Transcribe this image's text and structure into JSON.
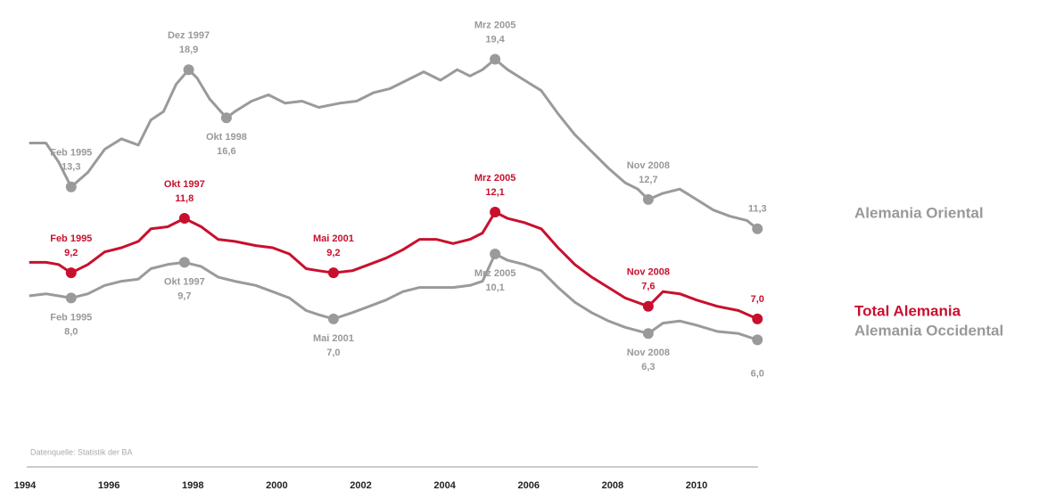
{
  "chart_data": {
    "type": "line",
    "source": "Datenquelle: Statistik der BA",
    "xlim": [
      1994,
      2011.7
    ],
    "xticks": [
      1994,
      1996,
      1998,
      2000,
      2002,
      2004,
      2006,
      2008,
      2010
    ],
    "ylim": [
      5,
      21
    ],
    "series": [
      {
        "name": "Alemania Oriental",
        "color": "#9a9a9a",
        "x": [
          1994.1,
          1994.5,
          1994.8,
          1995.1,
          1995.5,
          1995.9,
          1996.3,
          1996.7,
          1997.0,
          1997.3,
          1997.6,
          1997.9,
          1998.1,
          1998.4,
          1998.8,
          1999.0,
          1999.4,
          1999.8,
          2000.2,
          2000.6,
          2001.0,
          2001.5,
          2001.9,
          2002.3,
          2002.7,
          2003.1,
          2003.5,
          2003.9,
          2004.3,
          2004.6,
          2004.9,
          2005.2,
          2005.5,
          2005.9,
          2006.3,
          2006.7,
          2007.1,
          2007.5,
          2007.9,
          2008.3,
          2008.6,
          2008.85,
          2009.2,
          2009.6,
          2010.0,
          2010.4,
          2010.8,
          2011.2,
          2011.45
        ],
        "values": [
          15.4,
          15.4,
          14.5,
          13.3,
          14.0,
          15.1,
          15.6,
          15.3,
          16.5,
          16.9,
          18.2,
          18.9,
          18.5,
          17.5,
          16.6,
          16.9,
          17.4,
          17.7,
          17.3,
          17.4,
          17.1,
          17.3,
          17.4,
          17.8,
          18.0,
          18.4,
          18.8,
          18.4,
          18.9,
          18.6,
          18.9,
          19.4,
          18.9,
          18.4,
          17.9,
          16.8,
          15.8,
          15.0,
          14.2,
          13.5,
          13.2,
          12.7,
          13.0,
          13.2,
          12.7,
          12.2,
          11.9,
          11.7,
          11.3
        ],
        "annotations": [
          {
            "x": 1995.1,
            "label": "Feb 1995",
            "value": 13.3,
            "value_label": "13,3",
            "side": "above"
          },
          {
            "x": 1997.9,
            "label": "Dez 1997",
            "value": 18.9,
            "value_label": "18,9",
            "side": "above"
          },
          {
            "x": 1998.8,
            "label": "Okt 1998",
            "value": 16.6,
            "value_label": "16,6",
            "side": "below"
          },
          {
            "x": 2005.2,
            "label": "Mrz 2005",
            "value": 19.4,
            "value_label": "19,4",
            "side": "above"
          },
          {
            "x": 2008.85,
            "label": "Nov 2008",
            "value": 12.7,
            "value_label": "12,7",
            "side": "above"
          },
          {
            "x": 2011.45,
            "value": 11.3,
            "value_label": "11,3",
            "side": "above"
          }
        ]
      },
      {
        "name": "Total Alemania",
        "color": "#c8102e",
        "x": [
          1994.1,
          1994.5,
          1994.8,
          1995.1,
          1995.5,
          1995.9,
          1996.3,
          1996.7,
          1997.0,
          1997.4,
          1997.8,
          1998.2,
          1998.6,
          1999.0,
          1999.5,
          1999.9,
          2000.3,
          2000.7,
          2001.0,
          2001.35,
          2001.8,
          2002.2,
          2002.6,
          2003.0,
          2003.4,
          2003.8,
          2004.2,
          2004.6,
          2004.9,
          2005.2,
          2005.5,
          2005.9,
          2006.3,
          2006.7,
          2007.1,
          2007.5,
          2007.9,
          2008.3,
          2008.85,
          2009.2,
          2009.6,
          2010.0,
          2010.5,
          2011.0,
          2011.45
        ],
        "values": [
          9.7,
          9.7,
          9.6,
          9.2,
          9.6,
          10.2,
          10.4,
          10.7,
          11.3,
          11.4,
          11.8,
          11.4,
          10.8,
          10.7,
          10.5,
          10.4,
          10.1,
          9.4,
          9.3,
          9.2,
          9.3,
          9.6,
          9.9,
          10.3,
          10.8,
          10.8,
          10.6,
          10.8,
          11.1,
          12.1,
          11.8,
          11.6,
          11.3,
          10.4,
          9.6,
          9.0,
          8.5,
          8.0,
          7.6,
          8.3,
          8.2,
          7.9,
          7.6,
          7.4,
          7.0
        ],
        "annotations": [
          {
            "x": 1995.1,
            "label": "Feb 1995",
            "value": 9.2,
            "value_label": "9,2",
            "side": "above"
          },
          {
            "x": 1997.8,
            "label": "Okt 1997",
            "value": 11.8,
            "value_label": "11,8",
            "side": "above"
          },
          {
            "x": 2001.35,
            "label": "Mai 2001",
            "value": 9.2,
            "value_label": "9,2",
            "side": "above"
          },
          {
            "x": 2005.2,
            "label": "Mrz 2005",
            "value": 12.1,
            "value_label": "12,1",
            "side": "above"
          },
          {
            "x": 2008.85,
            "label": "Nov 2008",
            "value": 7.6,
            "value_label": "7,6",
            "side": "above"
          },
          {
            "x": 2011.45,
            "value": 7.0,
            "value_label": "7,0",
            "side": "above"
          }
        ]
      },
      {
        "name": "Alemania Occidental",
        "color": "#9a9a9a",
        "x": [
          1994.1,
          1994.5,
          1994.8,
          1995.1,
          1995.5,
          1995.9,
          1996.3,
          1996.7,
          1997.0,
          1997.4,
          1997.8,
          1998.2,
          1998.6,
          1999.0,
          1999.5,
          1999.9,
          2000.3,
          2000.7,
          2001.0,
          2001.35,
          2001.8,
          2002.2,
          2002.6,
          2003.0,
          2003.4,
          2003.8,
          2004.2,
          2004.6,
          2004.9,
          2005.2,
          2005.5,
          2005.9,
          2006.3,
          2006.7,
          2007.1,
          2007.5,
          2007.9,
          2008.3,
          2008.85,
          2009.2,
          2009.6,
          2010.0,
          2010.5,
          2011.0,
          2011.45
        ],
        "values": [
          8.1,
          8.2,
          8.1,
          8.0,
          8.2,
          8.6,
          8.8,
          8.9,
          9.4,
          9.6,
          9.7,
          9.5,
          9.0,
          8.8,
          8.6,
          8.3,
          8.0,
          7.4,
          7.2,
          7.0,
          7.3,
          7.6,
          7.9,
          8.3,
          8.5,
          8.5,
          8.5,
          8.6,
          8.8,
          10.1,
          9.8,
          9.6,
          9.3,
          8.5,
          7.8,
          7.3,
          6.9,
          6.6,
          6.3,
          6.8,
          6.9,
          6.7,
          6.4,
          6.3,
          6.0
        ],
        "annotations": [
          {
            "x": 1995.1,
            "label": "Feb 1995",
            "value": 8.0,
            "value_label": "8,0",
            "side": "below"
          },
          {
            "x": 1997.8,
            "label": "Okt 1997",
            "value": 9.7,
            "value_label": "9,7",
            "side": "below"
          },
          {
            "x": 2001.35,
            "label": "Mai 2001",
            "value": 7.0,
            "value_label": "7,0",
            "side": "below"
          },
          {
            "x": 2005.2,
            "label": "Mrz 2005",
            "value": 10.1,
            "value_label": "10,1",
            "side": "below"
          },
          {
            "x": 2008.85,
            "label": "Nov 2008",
            "value": 6.3,
            "value_label": "6,3",
            "side": "below"
          },
          {
            "x": 2011.45,
            "value": 6.0,
            "value_label": "6,0",
            "side": "below"
          }
        ]
      }
    ]
  }
}
